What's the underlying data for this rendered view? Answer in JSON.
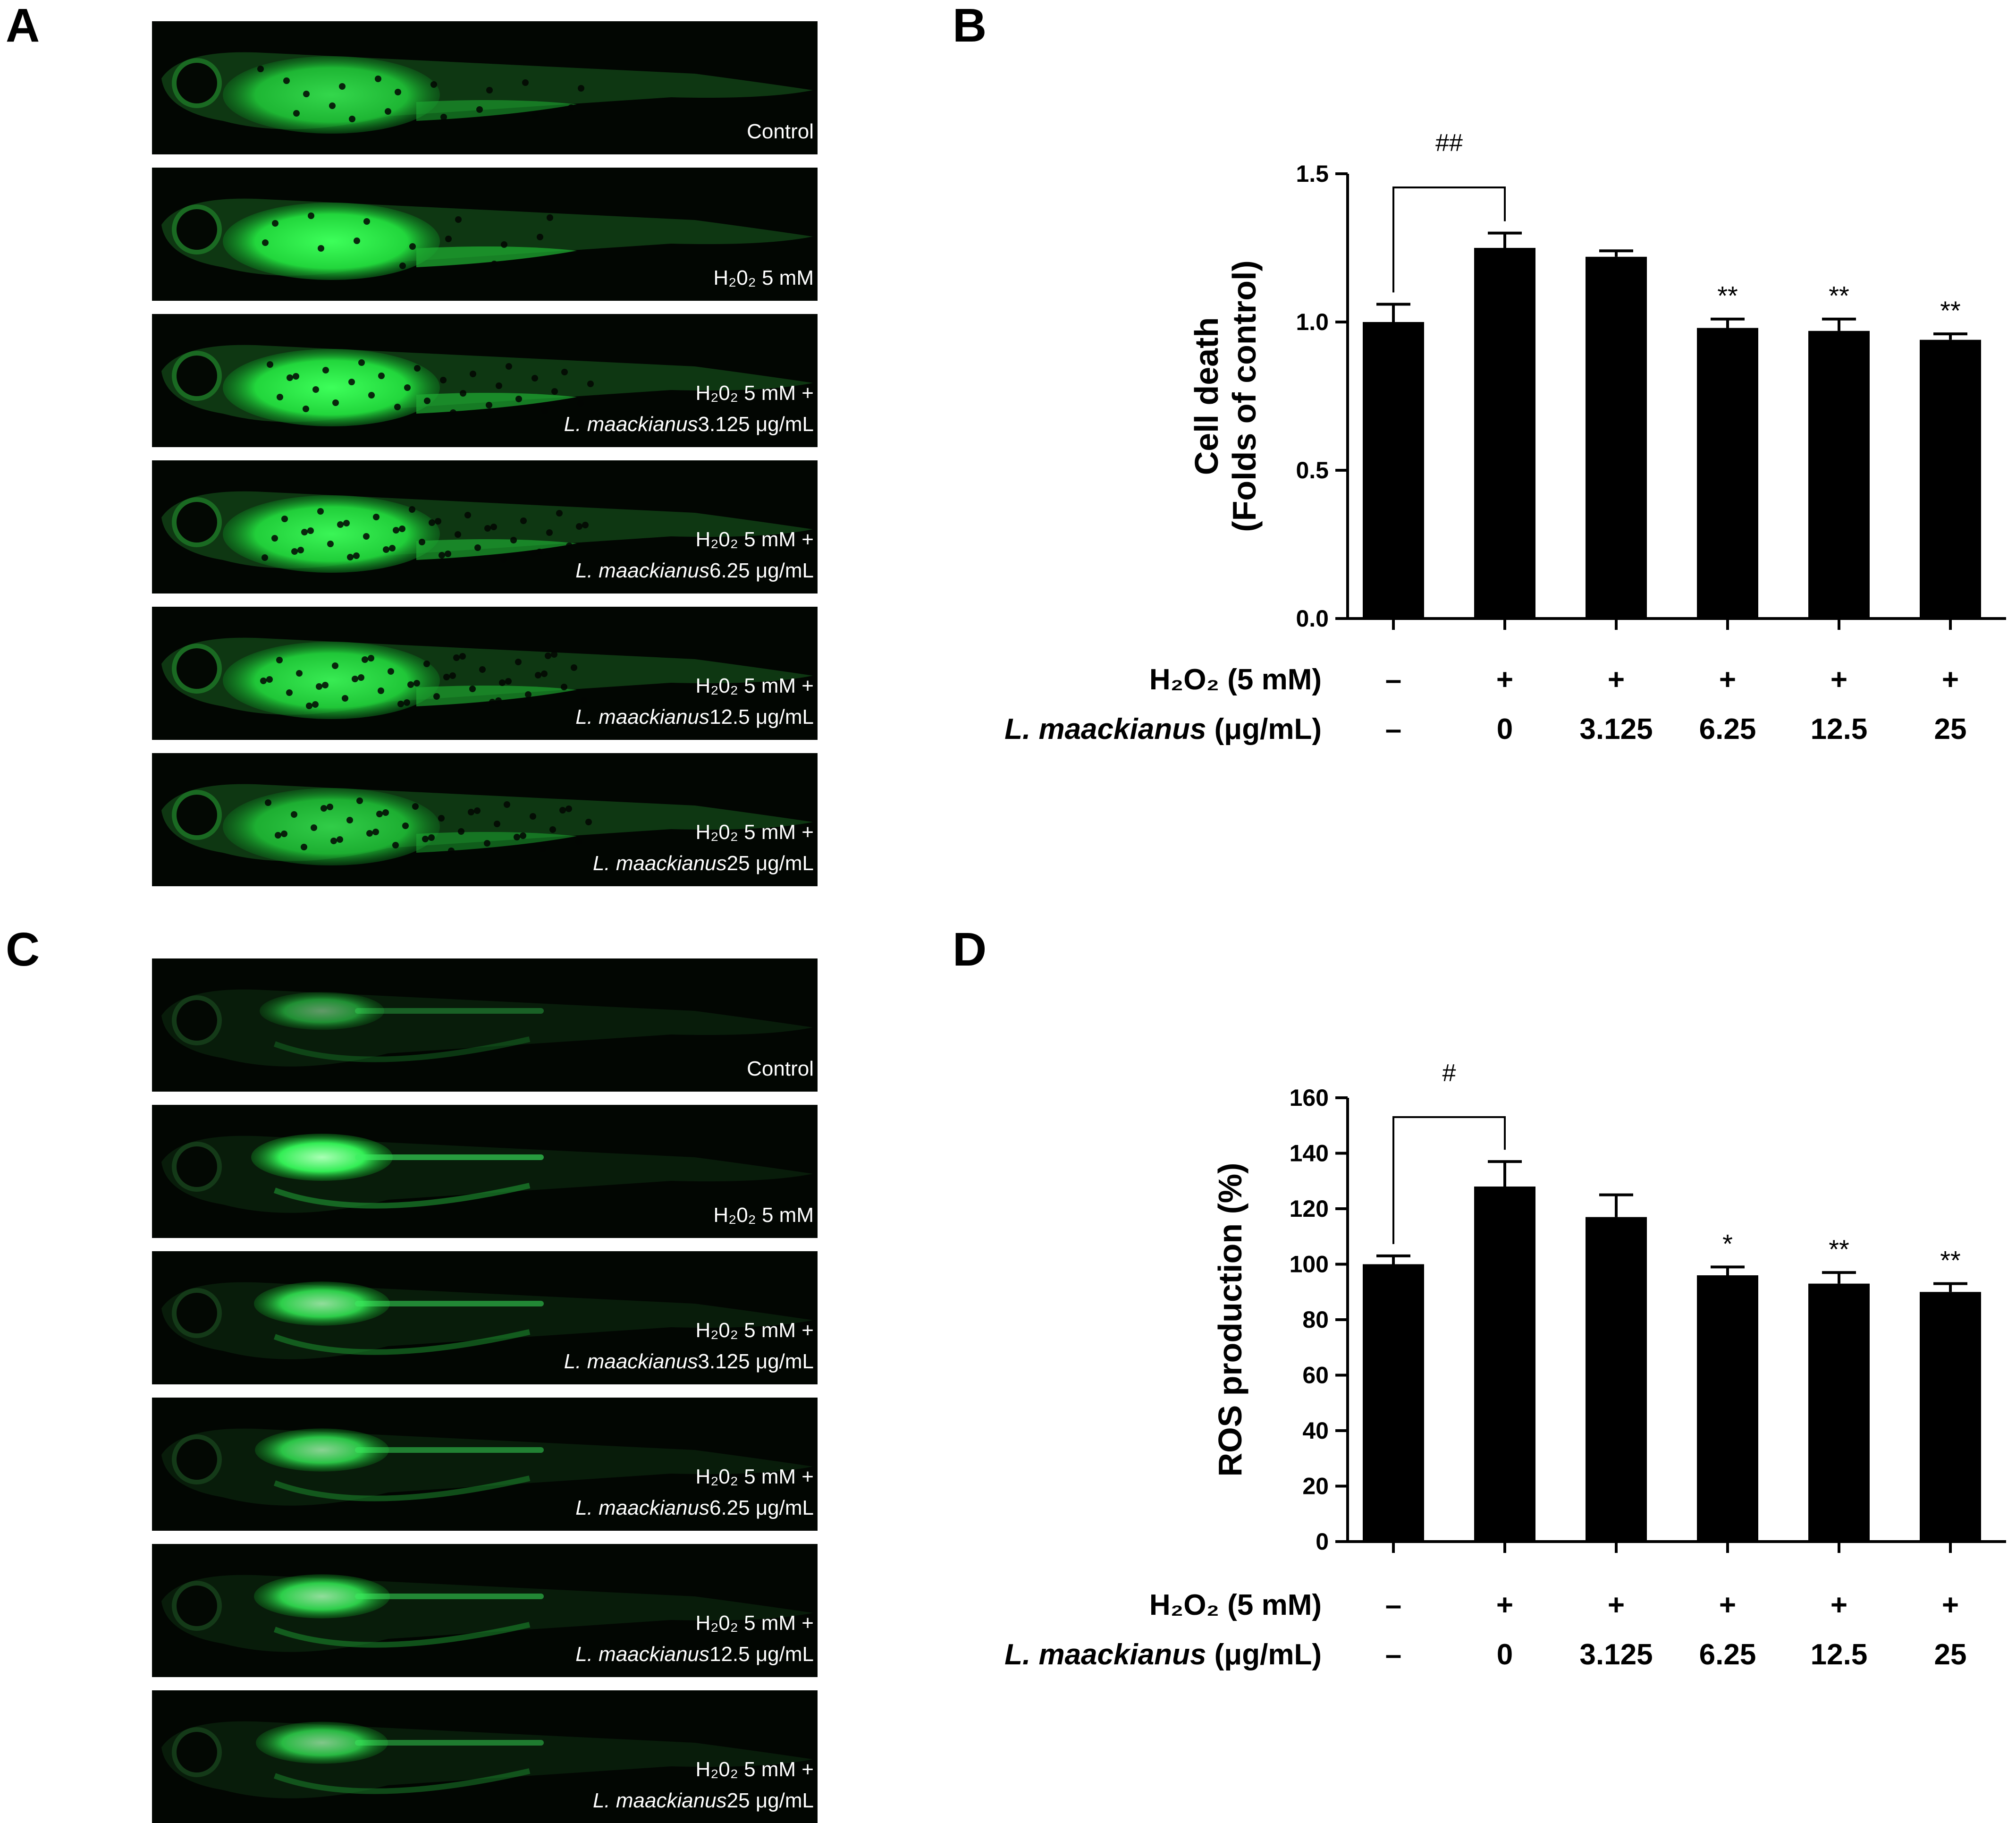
{
  "panels": {
    "A": {
      "letter": "A",
      "images": [
        {
          "line1": "Control",
          "line2": ""
        },
        {
          "line1": "H₂0₂ 5 mM",
          "line2": ""
        },
        {
          "line1": "H₂0₂ 5 mM  +",
          "line2_italic": "L. maackianus",
          "line2": "3.125 μg/mL"
        },
        {
          "line1": "H₂0₂ 5 mM  +",
          "line2_italic": "L. maackianus",
          "line2": "6.25 μg/mL"
        },
        {
          "line1": "H₂0₂ 5 mM  +",
          "line2_italic": "L. maackianus",
          "line2": "12.5 μg/mL"
        },
        {
          "line1": "H₂0₂ 5 mM  +",
          "line2_italic": "L. maackianus",
          "line2": "25 μg/mL"
        }
      ]
    },
    "C": {
      "letter": "C",
      "images": [
        {
          "line1": "Control",
          "line2": ""
        },
        {
          "line1": "H₂0₂ 5 mM",
          "line2": ""
        },
        {
          "line1": "H₂0₂ 5 mM  +",
          "line2_italic": "L. maackianus",
          "line2": "3.125 μg/mL"
        },
        {
          "line1": "H₂0₂ 5 mM  +",
          "line2_italic": "L. maackianus",
          "line2": "6.25 μg/mL"
        },
        {
          "line1": "H₂0₂ 5 mM  +",
          "line2_italic": "L. maackianus",
          "line2": "12.5 μg/mL"
        },
        {
          "line1": "H₂0₂ 5 mM  +",
          "line2_italic": "L. maackianus",
          "line2": "25 μg/mL"
        }
      ]
    },
    "B": {
      "letter": "B"
    },
    "D": {
      "letter": "D"
    }
  },
  "chart_data": [
    {
      "panel": "B",
      "type": "bar",
      "ylabel_line1": "Cell death",
      "ylabel_line2": "(Folds of control)",
      "ylim": [
        0,
        1.5
      ],
      "yticks": [
        "0.0",
        "0.5",
        "1.0",
        "1.5"
      ],
      "values": [
        1.0,
        1.25,
        1.22,
        0.98,
        0.97,
        0.94
      ],
      "errors": [
        0.06,
        0.05,
        0.02,
        0.03,
        0.04,
        0.02
      ],
      "significance": [
        "",
        "",
        "",
        "**",
        "**",
        "**"
      ],
      "bracket_label": "##",
      "row1_label": "H₂O₂ (5 mM)",
      "row1_values": [
        "–",
        "+",
        "+",
        "+",
        "+",
        "+"
      ],
      "row2_label_italic": "L. maackianus",
      "row2_label_rest": " (μg/mL)",
      "row2_values": [
        "–",
        "0",
        "3.125",
        "6.25",
        "12.5",
        "25"
      ],
      "bar_color": "#000000"
    },
    {
      "panel": "D",
      "type": "bar",
      "ylabel_line1": "ROS production (%)",
      "ylabel_line2": "",
      "ylim": [
        0,
        160
      ],
      "yticks": [
        "0",
        "20",
        "40",
        "60",
        "80",
        "100",
        "120",
        "140",
        "160"
      ],
      "values": [
        100,
        128,
        117,
        96,
        93,
        90
      ],
      "errors": [
        3,
        9,
        8,
        3,
        4,
        3
      ],
      "significance": [
        "",
        "",
        "",
        "*",
        "**",
        "**"
      ],
      "bracket_label": "#",
      "row1_label": "H₂O₂ (5 mM)",
      "row1_values": [
        "–",
        "+",
        "+",
        "+",
        "+",
        "+"
      ],
      "row2_label_italic": "L. maackianus",
      "row2_label_rest": " (μg/mL)",
      "row2_values": [
        "–",
        "0",
        "3.125",
        "6.25",
        "12.5",
        "25"
      ],
      "bar_color": "#000000"
    }
  ]
}
